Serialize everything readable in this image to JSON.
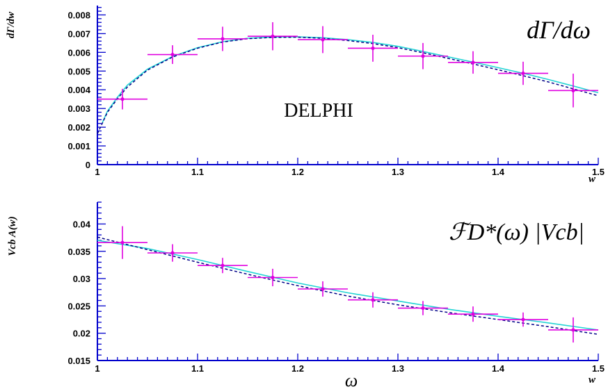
{
  "colors": {
    "axis": "#0000cc",
    "points": "#e000e0",
    "fit_solid": "#22d4d4",
    "fit_dashed": "#000088",
    "text": "#000000"
  },
  "chart_data": [
    {
      "type": "scatter",
      "title": "",
      "annotation": "dΓ/dω",
      "label": "DELPHI",
      "xlabel": "w",
      "ylabel": "dΓ/dw",
      "xlim": [
        1.0,
        1.5
      ],
      "ylim": [
        0,
        0.0085
      ],
      "xticks": [
        1,
        1.1,
        1.2,
        1.3,
        1.4,
        1.5
      ],
      "xtick_labels": [
        "1",
        "1.1",
        "1.2",
        "1.3",
        "1.4",
        "1.5"
      ],
      "yticks": [
        0,
        0.001,
        0.002,
        0.003,
        0.004,
        0.005,
        0.006,
        0.007,
        0.008
      ],
      "ytick_labels": [
        "0",
        "0.001",
        "0.002",
        "0.003",
        "0.004",
        "0.005",
        "0.006",
        "0.007",
        "0.008"
      ],
      "grid": false,
      "points": [
        {
          "x": 1.025,
          "y": 0.0035,
          "xerr": 0.025,
          "yerr": 0.00055
        },
        {
          "x": 1.075,
          "y": 0.00588,
          "xerr": 0.025,
          "yerr": 0.0005
        },
        {
          "x": 1.125,
          "y": 0.00672,
          "xerr": 0.025,
          "yerr": 0.00065
        },
        {
          "x": 1.175,
          "y": 0.00686,
          "xerr": 0.025,
          "yerr": 0.00075
        },
        {
          "x": 1.225,
          "y": 0.00668,
          "xerr": 0.025,
          "yerr": 0.00072
        },
        {
          "x": 1.275,
          "y": 0.00622,
          "xerr": 0.025,
          "yerr": 0.00072
        },
        {
          "x": 1.325,
          "y": 0.0058,
          "xerr": 0.025,
          "yerr": 0.0007
        },
        {
          "x": 1.375,
          "y": 0.00546,
          "xerr": 0.025,
          "yerr": 0.0006
        },
        {
          "x": 1.425,
          "y": 0.00488,
          "xerr": 0.025,
          "yerr": 0.00062
        },
        {
          "x": 1.475,
          "y": 0.00396,
          "xerr": 0.025,
          "yerr": 0.0009
        }
      ],
      "series": [
        {
          "style": "solid",
          "x": [
            1.005,
            1.01,
            1.02,
            1.03,
            1.05,
            1.075,
            1.1,
            1.125,
            1.15,
            1.175,
            1.2,
            1.225,
            1.25,
            1.275,
            1.3,
            1.325,
            1.35,
            1.375,
            1.4,
            1.425,
            1.45,
            1.475,
            1.5
          ],
          "y": [
            0.00225,
            0.00285,
            0.0036,
            0.00425,
            0.0051,
            0.00578,
            0.00625,
            0.00657,
            0.00675,
            0.00682,
            0.00683,
            0.00678,
            0.00668,
            0.00653,
            0.00632,
            0.00605,
            0.00576,
            0.00548,
            0.00518,
            0.00488,
            0.00455,
            0.0042,
            0.00384
          ]
        },
        {
          "style": "dashed",
          "x": [
            1.0,
            1.005,
            1.01,
            1.02,
            1.03,
            1.05,
            1.075,
            1.1,
            1.125,
            1.15,
            1.175,
            1.2,
            1.225,
            1.25,
            1.275,
            1.3,
            1.325,
            1.35,
            1.375,
            1.4,
            1.425,
            1.45,
            1.475,
            1.5
          ],
          "y": [
            0.00165,
            0.00222,
            0.0028,
            0.00352,
            0.00415,
            0.00505,
            0.00575,
            0.00622,
            0.00655,
            0.00673,
            0.0068,
            0.00681,
            0.00675,
            0.00663,
            0.00647,
            0.00625,
            0.00598,
            0.00568,
            0.00538,
            0.00507,
            0.00475,
            0.00442,
            0.00405,
            0.00368
          ]
        }
      ]
    },
    {
      "type": "scatter",
      "title": "",
      "annotation": "ℱD*(ω) |Vcb|",
      "xlabel": "w",
      "xlabel_below": "ω",
      "ylabel": "Vcb A(w)",
      "xlim": [
        1.0,
        1.5
      ],
      "ylim": [
        0.015,
        0.044
      ],
      "xticks": [
        1,
        1.1,
        1.2,
        1.3,
        1.4,
        1.5
      ],
      "xtick_labels": [
        "1",
        "1.1",
        "1.2",
        "1.3",
        "1.4",
        "1.5"
      ],
      "yticks": [
        0.015,
        0.02,
        0.025,
        0.03,
        0.035,
        0.04
      ],
      "ytick_labels": [
        "0.015",
        "0.02",
        "0.025",
        "0.03",
        "0.035",
        "0.04"
      ],
      "grid": false,
      "points": [
        {
          "x": 1.025,
          "y": 0.0366,
          "xerr": 0.025,
          "yerr": 0.003
        },
        {
          "x": 1.075,
          "y": 0.0347,
          "xerr": 0.025,
          "yerr": 0.0016
        },
        {
          "x": 1.125,
          "y": 0.0324,
          "xerr": 0.025,
          "yerr": 0.0014
        },
        {
          "x": 1.175,
          "y": 0.0302,
          "xerr": 0.025,
          "yerr": 0.0016
        },
        {
          "x": 1.225,
          "y": 0.0281,
          "xerr": 0.025,
          "yerr": 0.0014
        },
        {
          "x": 1.275,
          "y": 0.0261,
          "xerr": 0.025,
          "yerr": 0.0014
        },
        {
          "x": 1.325,
          "y": 0.0246,
          "xerr": 0.025,
          "yerr": 0.0013
        },
        {
          "x": 1.375,
          "y": 0.0235,
          "xerr": 0.025,
          "yerr": 0.0014
        },
        {
          "x": 1.425,
          "y": 0.0225,
          "xerr": 0.025,
          "yerr": 0.0013
        },
        {
          "x": 1.475,
          "y": 0.0206,
          "xerr": 0.025,
          "yerr": 0.0023
        }
      ],
      "series": [
        {
          "style": "solid",
          "x": [
            1.0,
            1.05,
            1.1,
            1.15,
            1.2,
            1.25,
            1.3,
            1.35,
            1.4,
            1.45,
            1.5
          ],
          "y": [
            0.037,
            0.0355,
            0.0335,
            0.0313,
            0.0292,
            0.0274,
            0.0259,
            0.0244,
            0.0231,
            0.0219,
            0.0206
          ]
        },
        {
          "style": "dashed",
          "x": [
            1.0,
            1.05,
            1.1,
            1.15,
            1.2,
            1.25,
            1.3,
            1.35,
            1.4,
            1.45,
            1.5
          ],
          "y": [
            0.0376,
            0.0353,
            0.033,
            0.0308,
            0.0287,
            0.0268,
            0.0252,
            0.0238,
            0.0225,
            0.0212,
            0.0198
          ]
        }
      ]
    }
  ]
}
